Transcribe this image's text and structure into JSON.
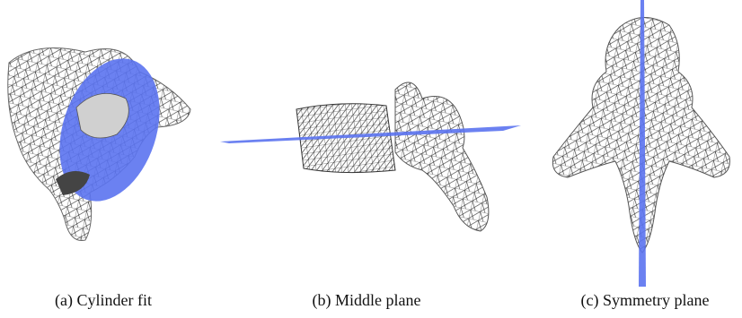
{
  "subfigures": [
    {
      "caption": "(a) Cylinder fit"
    },
    {
      "caption": "(b) Middle plane"
    },
    {
      "caption": "(c) Symmetry plane"
    }
  ]
}
